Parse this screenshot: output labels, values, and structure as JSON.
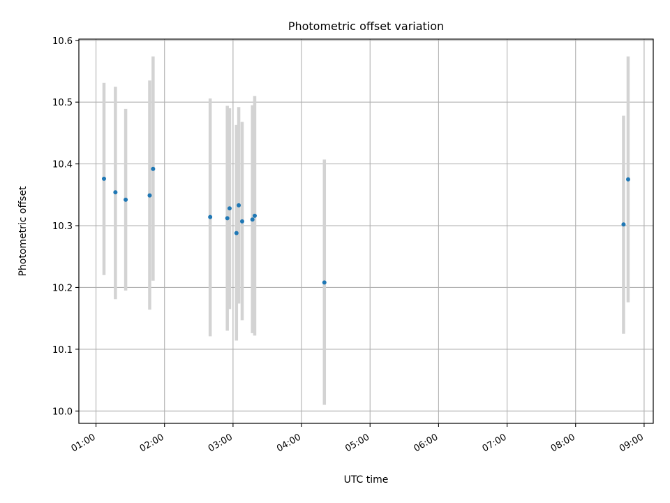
{
  "chart_data": {
    "type": "scatter",
    "title": "Photometric offset variation",
    "xlabel": "UTC time",
    "ylabel": "Photometric offset",
    "x_tick_labels": [
      "01:00",
      "02:00",
      "03:00",
      "04:00",
      "05:00",
      "06:00",
      "07:00",
      "08:00",
      "09:00"
    ],
    "y_tick_labels": [
      "10.0",
      "10.1",
      "10.2",
      "10.3",
      "10.4",
      "10.5",
      "10.6"
    ],
    "xlim": [
      "00:45",
      "09:08"
    ],
    "ylim": [
      9.98,
      10.602
    ],
    "grid": true,
    "colors": {
      "points": "#1f77b4",
      "error_bars": "#d3d3d3",
      "grid": "#b0b0b0",
      "axes": "#000000"
    },
    "series": [
      {
        "points": [
          {
            "x": "01:07",
            "y": 10.376,
            "ylow": 10.22,
            "yhigh": 10.531
          },
          {
            "x": "01:17",
            "y": 10.354,
            "ylow": 10.181,
            "yhigh": 10.525
          },
          {
            "x": "01:26",
            "y": 10.342,
            "ylow": 10.195,
            "yhigh": 10.489
          },
          {
            "x": "01:47",
            "y": 10.349,
            "ylow": 10.164,
            "yhigh": 10.535
          },
          {
            "x": "01:50",
            "y": 10.392,
            "ylow": 10.211,
            "yhigh": 10.574
          },
          {
            "x": "02:40",
            "y": 10.314,
            "ylow": 10.121,
            "yhigh": 10.506
          },
          {
            "x": "02:55",
            "y": 10.312,
            "ylow": 10.13,
            "yhigh": 10.494
          },
          {
            "x": "02:57",
            "y": 10.328,
            "ylow": 10.165,
            "yhigh": 10.49
          },
          {
            "x": "03:03",
            "y": 10.288,
            "ylow": 10.114,
            "yhigh": 10.463
          },
          {
            "x": "03:05",
            "y": 10.333,
            "ylow": 10.174,
            "yhigh": 10.492
          },
          {
            "x": "03:08",
            "y": 10.307,
            "ylow": 10.147,
            "yhigh": 10.468
          },
          {
            "x": "03:17",
            "y": 10.31,
            "ylow": 10.126,
            "yhigh": 10.495
          },
          {
            "x": "03:19",
            "y": 10.316,
            "ylow": 10.122,
            "yhigh": 10.51
          },
          {
            "x": "04:20",
            "y": 10.208,
            "ylow": 10.01,
            "yhigh": 10.407
          },
          {
            "x": "08:42",
            "y": 10.302,
            "ylow": 10.125,
            "yhigh": 10.478
          },
          {
            "x": "08:46",
            "y": 10.375,
            "ylow": 10.176,
            "yhigh": 10.574
          }
        ]
      }
    ]
  }
}
